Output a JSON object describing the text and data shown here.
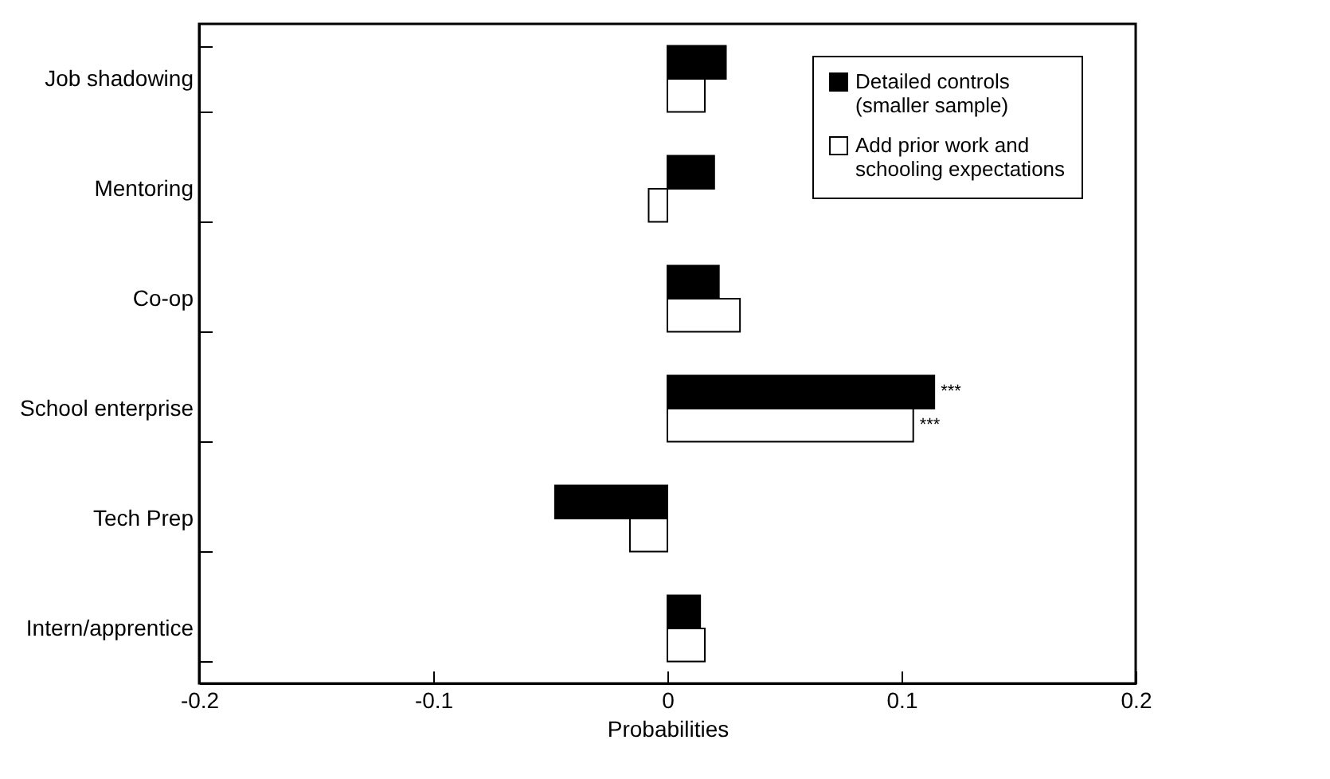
{
  "chart_data": {
    "type": "bar",
    "orientation": "horizontal",
    "xlabel": "Probabilities",
    "categories": [
      "Job shadowing",
      "Mentoring",
      "Co-op",
      "School enterprise",
      "Tech Prep",
      "Intern/apprentice"
    ],
    "series": [
      {
        "name": "Detailed controls (smaller sample)",
        "color": "#000000",
        "values": [
          0.025,
          0.02,
          0.022,
          0.114,
          -0.048,
          0.014
        ]
      },
      {
        "name": "Add prior work and schooling expectations",
        "color": "#ffffff",
        "values": [
          0.016,
          -0.008,
          0.031,
          0.105,
          -0.016,
          0.016
        ]
      }
    ],
    "xlim": [
      -0.2,
      0.2
    ],
    "xticks": [
      -0.2,
      -0.1,
      0,
      0.1,
      0.2
    ],
    "grid": false,
    "legend": "top right",
    "annotations": [
      {
        "text": "***",
        "x": 0.114,
        "y": "School enterprise"
      },
      {
        "text": "***",
        "x": 0.105,
        "y": "School enterprise"
      }
    ]
  }
}
